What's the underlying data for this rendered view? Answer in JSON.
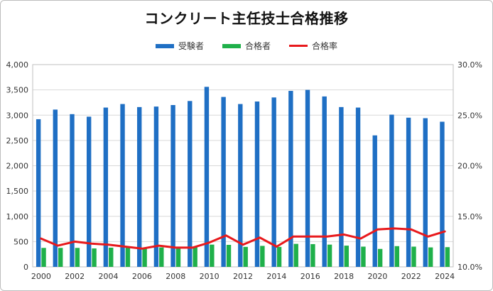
{
  "chart_data": {
    "type": "bar",
    "title": "コンクリート主任技士合格推移",
    "x": [
      2000,
      2001,
      2002,
      2003,
      2004,
      2005,
      2006,
      2007,
      2008,
      2009,
      2010,
      2011,
      2012,
      2013,
      2014,
      2015,
      2016,
      2017,
      2018,
      2019,
      2020,
      2021,
      2022,
      2023,
      2024
    ],
    "x_tick_labels": [
      "2000",
      "2002",
      "2004",
      "2006",
      "2008",
      "2010",
      "2012",
      "2014",
      "2016",
      "2018",
      "2020",
      "2022",
      "2024"
    ],
    "y_left_lim": [
      0,
      4000
    ],
    "y_left_ticks": [
      "0",
      "500",
      "1,000",
      "1,500",
      "2,000",
      "2,500",
      "3,000",
      "3,500",
      "4,000"
    ],
    "y_right_lim": [
      10,
      30
    ],
    "y_right_ticks": [
      "10.0%",
      "15.0%",
      "20.0%",
      "25.0%",
      "30.0%"
    ],
    "grid": true,
    "legend_position": "top-center",
    "series": [
      {
        "name": "受験者",
        "type": "bar",
        "axis": "left",
        "color": "#1f6fc4",
        "values": [
          2920,
          3110,
          3020,
          2970,
          3150,
          3220,
          3160,
          3170,
          3200,
          3280,
          3560,
          3360,
          3220,
          3270,
          3350,
          3480,
          3500,
          3370,
          3160,
          3150,
          2600,
          3010,
          2950,
          2940,
          2870
        ]
      },
      {
        "name": "合格者",
        "type": "bar",
        "axis": "left",
        "color": "#1fb04a",
        "values": [
          375,
          375,
          375,
          365,
          380,
          380,
          370,
          385,
          380,
          390,
          440,
          435,
          395,
          415,
          395,
          455,
          450,
          440,
          420,
          400,
          355,
          410,
          400,
          385,
          390
        ]
      },
      {
        "name": "合格率",
        "type": "line",
        "axis": "right",
        "color": "#e8191c",
        "values": [
          12.8,
          12.1,
          12.5,
          12.3,
          12.2,
          12.0,
          11.8,
          12.1,
          11.9,
          11.9,
          12.4,
          13.1,
          12.2,
          12.9,
          12.0,
          13.0,
          13.0,
          13.0,
          13.2,
          12.8,
          13.7,
          13.8,
          13.7,
          13.0,
          13.5
        ]
      }
    ]
  }
}
